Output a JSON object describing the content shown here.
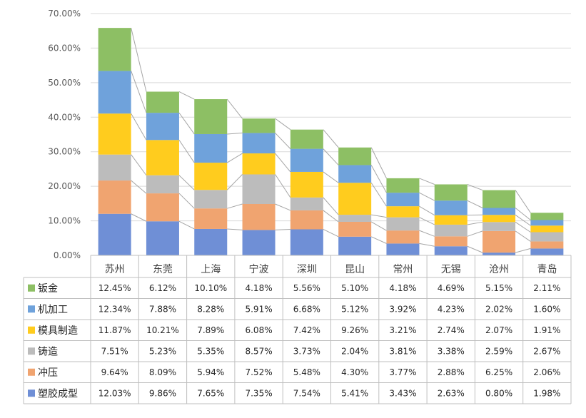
{
  "chart_data": {
    "type": "bar",
    "stacked": true,
    "categories": [
      "苏州",
      "东莞",
      "上海",
      "宁波",
      "深圳",
      "昆山",
      "常州",
      "无锡",
      "沧州",
      "青岛"
    ],
    "y_ticks": [
      "0.00%",
      "10.00%",
      "20.00%",
      "30.00%",
      "40.00%",
      "50.00%",
      "60.00%",
      "70.00%"
    ],
    "ylim": [
      0,
      70
    ],
    "grid": true,
    "legend": "data-table-left",
    "series_order_bottom_to_top": [
      "塑胶成型",
      "冲压",
      "铸造",
      "模具制造",
      "机加工",
      "钣金"
    ],
    "series": [
      {
        "name": "钣金",
        "color": "#8DBF64",
        "values": [
          12.45,
          6.12,
          10.1,
          4.18,
          5.56,
          5.1,
          4.18,
          4.69,
          5.15,
          2.11
        ],
        "labels": [
          "12.45%",
          "6.12%",
          "10.10%",
          "4.18%",
          "5.56%",
          "5.10%",
          "4.18%",
          "4.69%",
          "5.15%",
          "2.11%"
        ]
      },
      {
        "name": "机加工",
        "color": "#6FA2DB",
        "values": [
          12.34,
          7.88,
          8.28,
          5.91,
          6.68,
          5.12,
          3.92,
          4.23,
          2.02,
          1.6
        ],
        "labels": [
          "12.34%",
          "7.88%",
          "8.28%",
          "5.91%",
          "6.68%",
          "5.12%",
          "3.92%",
          "4.23%",
          "2.02%",
          "1.60%"
        ]
      },
      {
        "name": "模具制造",
        "color": "#FFCC1E",
        "values": [
          11.87,
          10.21,
          7.89,
          6.08,
          7.42,
          9.26,
          3.21,
          2.74,
          2.07,
          1.91
        ],
        "labels": [
          "11.87%",
          "10.21%",
          "7.89%",
          "6.08%",
          "7.42%",
          "9.26%",
          "3.21%",
          "2.74%",
          "2.07%",
          "1.91%"
        ]
      },
      {
        "name": "铸造",
        "color": "#BCBCBC",
        "values": [
          7.51,
          5.23,
          5.35,
          8.57,
          3.73,
          2.04,
          3.81,
          3.38,
          2.59,
          2.67
        ],
        "labels": [
          "7.51%",
          "5.23%",
          "5.35%",
          "8.57%",
          "3.73%",
          "2.04%",
          "3.81%",
          "3.38%",
          "2.59%",
          "2.67%"
        ]
      },
      {
        "name": "冲压",
        "color": "#F0A470",
        "values": [
          9.64,
          8.09,
          5.94,
          7.52,
          5.48,
          4.3,
          3.77,
          2.88,
          6.25,
          2.06
        ],
        "labels": [
          "9.64%",
          "8.09%",
          "5.94%",
          "7.52%",
          "5.48%",
          "4.30%",
          "3.77%",
          "2.88%",
          "6.25%",
          "2.06%"
        ]
      },
      {
        "name": "塑胶成型",
        "color": "#6F8FD6",
        "values": [
          12.03,
          9.86,
          7.65,
          7.35,
          7.54,
          5.41,
          3.43,
          2.63,
          0.8,
          1.98
        ],
        "labels": [
          "12.03%",
          "9.86%",
          "7.65%",
          "7.35%",
          "7.54%",
          "5.41%",
          "3.43%",
          "2.63%",
          "0.80%",
          "1.98%"
        ]
      }
    ]
  }
}
